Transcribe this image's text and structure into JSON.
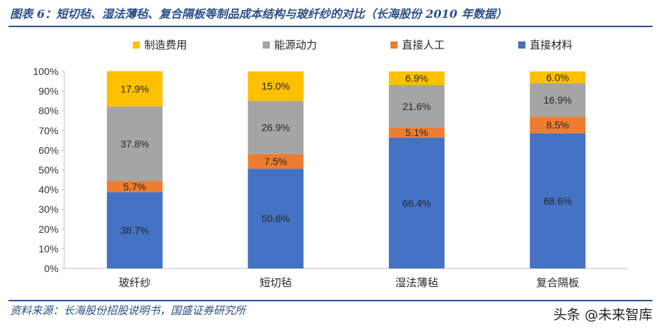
{
  "figure": {
    "title": "图表 6：短切毡、湿法薄毡、复合隔板等制品成本结构与玻纤纱的对比（长海股份 2010 年数据）",
    "source": "资料来源：长海股份招股说明书，国盛证券研究所",
    "watermark": "头条 @未来智库"
  },
  "chart_data": {
    "type": "bar",
    "stacked": true,
    "categories": [
      "玻纤纱",
      "短切毡",
      "湿法薄毡",
      "复合隔板"
    ],
    "series": [
      {
        "name": "直接材料",
        "color": "#4472c4",
        "values": [
          38.7,
          50.6,
          66.4,
          68.6
        ],
        "labels": [
          "38.7%",
          "50.6%",
          "66.4%",
          "68.6%"
        ]
      },
      {
        "name": "直接人工",
        "color": "#ed7d31",
        "values": [
          5.7,
          7.5,
          5.1,
          8.5
        ],
        "labels": [
          "5.7%",
          "7.5%",
          "5.1%",
          "8.5%"
        ]
      },
      {
        "name": "能源动力",
        "color": "#a5a5a5",
        "values": [
          37.8,
          26.9,
          21.6,
          16.9
        ],
        "labels": [
          "37.8%",
          "26.9%",
          "21.6%",
          "16.9%"
        ]
      },
      {
        "name": "制造费用",
        "color": "#ffc000",
        "values": [
          17.9,
          15.0,
          6.9,
          6.0
        ],
        "labels": [
          "17.9%",
          "15.0%",
          "6.9%",
          "6.0%"
        ]
      }
    ],
    "legend_order": [
      "制造费用",
      "能源动力",
      "直接人工",
      "直接材料"
    ],
    "legend_position": "top",
    "yticks": [
      "0%",
      "10%",
      "20%",
      "30%",
      "40%",
      "50%",
      "60%",
      "70%",
      "80%",
      "90%",
      "100%"
    ],
    "ylim": [
      0,
      100
    ],
    "grid": false
  }
}
